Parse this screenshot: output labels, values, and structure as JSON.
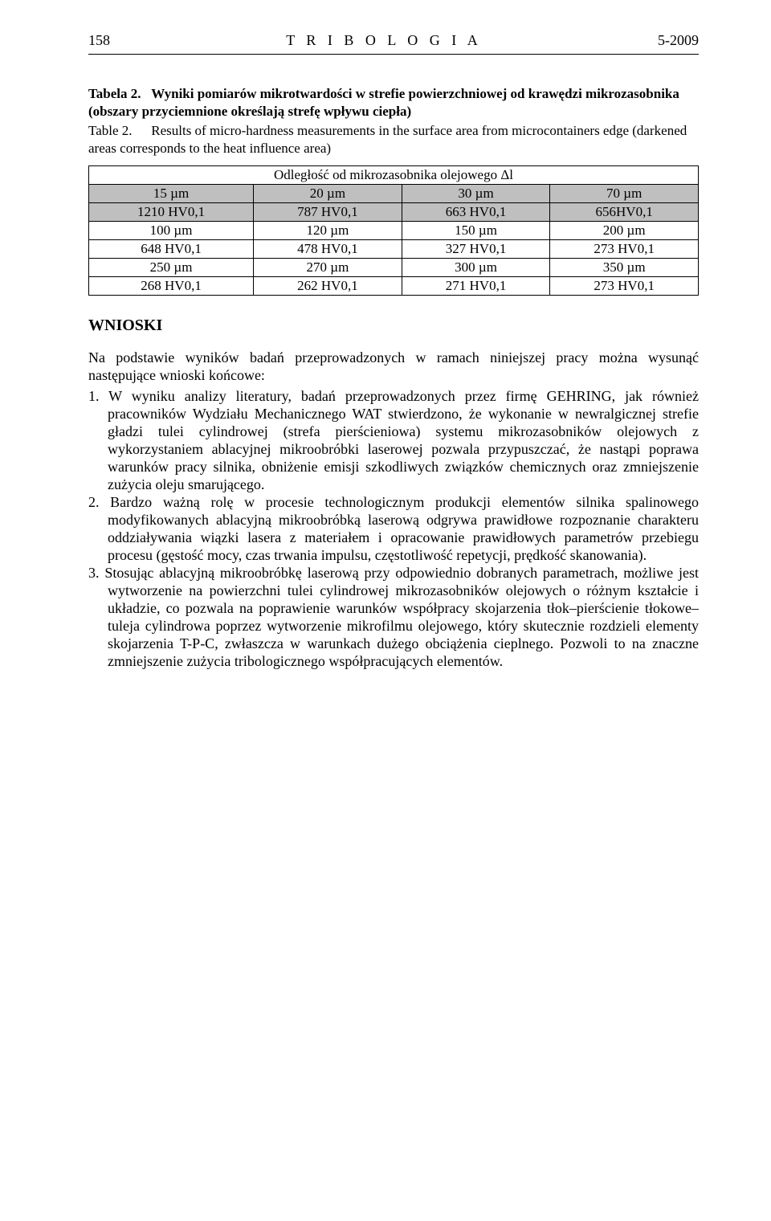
{
  "header": {
    "page_number": "158",
    "journal": "T R I B O L O G I A",
    "issue": "5-2009"
  },
  "table": {
    "caption_pl_label": "Tabela 2.",
    "caption_pl": "Wyniki pomiarów mikrotwardości w strefie powierzchniowej od krawędzi mikrozasobnika (obszary przyciemnione określają strefę wpływu ciepła)",
    "caption_en_label": "Table 2.",
    "caption_en": "Results of micro-hardness measurements in the surface area from microcontainers edge (darkened areas corresponds to the heat influence area)",
    "header_row": "Odległość od mikrozasobnika olejowego Δl",
    "rows": [
      {
        "c1": "15 µm",
        "c2": "20 µm",
        "c3": "30 µm",
        "c4": "70 µm",
        "shaded": true
      },
      {
        "c1": "1210 HV0,1",
        "c2": "787 HV0,1",
        "c3": "663 HV0,1",
        "c4": "656HV0,1",
        "shaded": true
      },
      {
        "c1": "100 µm",
        "c2": "120 µm",
        "c3": "150 µm",
        "c4": "200 µm",
        "shaded": false
      },
      {
        "c1": "648 HV0,1",
        "c2": "478 HV0,1",
        "c3": "327 HV0,1",
        "c4": "273 HV0,1",
        "shaded": false
      },
      {
        "c1": "250 µm",
        "c2": "270 µm",
        "c3": "300 µm",
        "c4": "350 µm",
        "shaded": false
      },
      {
        "c1": "268 HV0,1",
        "c2": "262 HV0,1",
        "c3": "271 HV0,1",
        "c4": "273 HV0,1",
        "shaded": false
      }
    ]
  },
  "conclusions": {
    "heading": "WNIOSKI",
    "intro": "Na podstawie wyników badań przeprowadzonych w ramach niniejszej pracy można wysunąć następujące wnioski końcowe:",
    "items": [
      "1. W wyniku analizy literatury, badań przeprowadzonych przez firmę GEHRING, jak również pracowników Wydziału Mechanicznego WAT stwierdzono, że wykonanie w newralgicznej strefie gładzi tulei cylindrowej (strefa pierścieniowa) systemu mikrozasobników olejowych z wykorzystaniem ablacyjnej mikroobróbki laserowej pozwala przypuszczać, że nastąpi poprawa warunków pracy silnika, obniżenie emisji szkodliwych związków chemicznych oraz zmniejszenie zużycia oleju smarującego.",
      "2. Bardzo ważną rolę w procesie technologicznym produkcji elementów silnika spalinowego modyfikowanych ablacyjną mikroobróbką laserową odgrywa prawidłowe rozpoznanie charakteru oddziaływania wiązki lasera z materiałem i opracowanie prawidłowych parametrów przebiegu procesu (gęstość mocy, czas trwania impulsu, częstotliwość repetycji, prędkość skanowania).",
      "3. Stosując ablacyjną mikroobróbkę laserową przy odpowiednio dobranych parametrach, możliwe jest wytworzenie na powierzchni tulei cylindrowej mikrozasobników olejowych o różnym kształcie i układzie, co pozwala na poprawienie warunków współpracy skojarzenia tłok–pierścienie tłokowe–tuleja cylindrowa poprzez wytworzenie mikrofilmu olejowego, który skutecznie rozdzieli elementy skojarzenia T-P-C, zwłaszcza w warunkach dużego obciążenia cieplnego. Pozwoli to na znaczne zmniejszenie zużycia tribologicznego współpracujących elementów."
    ]
  }
}
